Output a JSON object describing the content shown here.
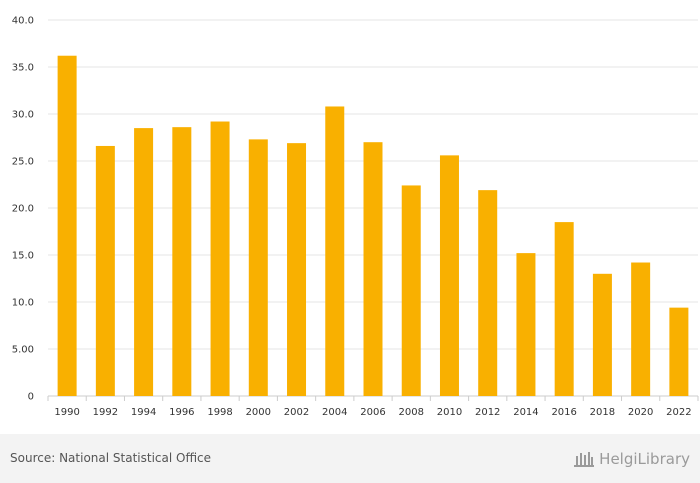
{
  "chart_data": {
    "type": "bar",
    "categories": [
      "1990",
      "1992",
      "1994",
      "1996",
      "1998",
      "2000",
      "2002",
      "2004",
      "2006",
      "2008",
      "2010",
      "2012",
      "2014",
      "2016",
      "2018",
      "2020",
      "2022"
    ],
    "values": [
      36.2,
      26.6,
      28.5,
      28.6,
      29.2,
      27.3,
      26.9,
      30.8,
      27.0,
      22.4,
      25.6,
      21.9,
      15.2,
      18.5,
      13.0,
      14.2,
      9.4
    ],
    "ylim": [
      0,
      40
    ],
    "yticks": [
      0,
      5,
      10,
      15,
      20,
      25,
      30,
      35,
      40
    ],
    "ytick_labels": [
      "0",
      "5.00",
      "10.0",
      "15.0",
      "20.0",
      "25.0",
      "30.0",
      "35.0",
      "40.0"
    ],
    "bar_color": "#f9b000",
    "grid": true,
    "title": "",
    "xlabel": "",
    "ylabel": ""
  },
  "footer": {
    "source": "Source: National Statistical Office",
    "logo_text": "HelgiLibrary"
  },
  "colors": {
    "bar": "#f9b000",
    "grid": "#e6e6e6",
    "axis": "#cccccc"
  }
}
